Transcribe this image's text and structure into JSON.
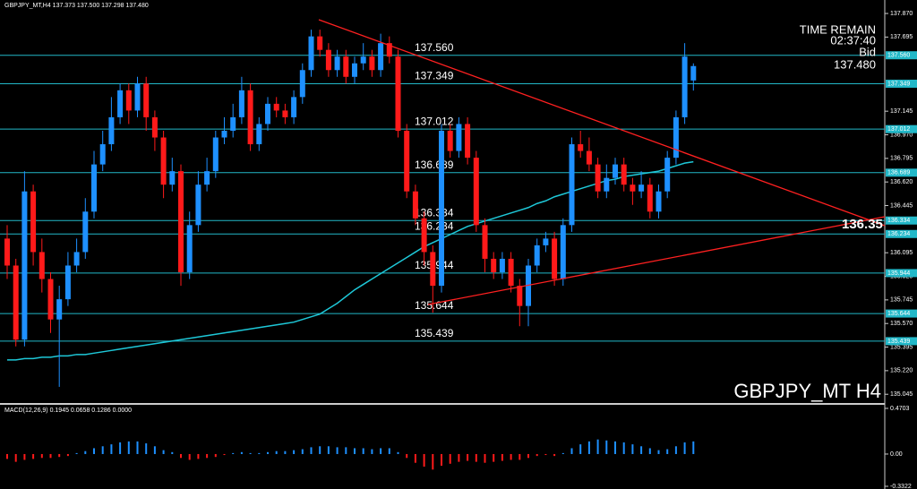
{
  "chart_data": {
    "type": "candlestick",
    "header": "GBPJPY_MT,H4  137.373 137.500 137.298 137.480",
    "watermark": "GBPJPY_MT H4",
    "time_remain_label": "TIME REMAIN",
    "time_remain": "02:37:40",
    "bid_label": "Bid",
    "bid": "137.480",
    "price_marker": "136.35",
    "up_color": "#1e90ff",
    "down_color": "#ff1a1a",
    "ylim": [
      134.98,
      137.97
    ],
    "yticks": [
      {
        "value": 137.87,
        "label": "137.870"
      },
      {
        "value": 137.695,
        "label": "137.695"
      },
      {
        "value": 137.145,
        "label": "137.145"
      },
      {
        "value": 136.97,
        "label": "136.970"
      },
      {
        "value": 136.795,
        "label": "136.795"
      },
      {
        "value": 136.62,
        "label": "136.620"
      },
      {
        "value": 136.445,
        "label": "136.445"
      },
      {
        "value": 136.095,
        "label": "136.095"
      },
      {
        "value": 135.92,
        "label": "135.920"
      },
      {
        "value": 135.745,
        "label": "135.745"
      },
      {
        "value": 135.57,
        "label": "135.570"
      },
      {
        "value": 135.395,
        "label": "135.395"
      },
      {
        "value": 135.22,
        "label": "135.220"
      },
      {
        "value": 135.045,
        "label": "135.045"
      }
    ],
    "levels": [
      {
        "value": 137.56,
        "label": "137.560"
      },
      {
        "value": 137.349,
        "label": "137.349"
      },
      {
        "value": 137.012,
        "label": "137.012"
      },
      {
        "value": 136.689,
        "label": "136.689"
      },
      {
        "value": 136.334,
        "label": "136.334"
      },
      {
        "value": 136.234,
        "label": "136.234"
      },
      {
        "value": 135.944,
        "label": "135.944"
      },
      {
        "value": 135.644,
        "label": "135.644"
      },
      {
        "value": 135.439,
        "label": "135.439"
      }
    ],
    "level_color": "#22b8c8",
    "open": [
      136.2,
      136.0,
      135.45,
      136.55,
      136.1,
      135.9,
      135.6,
      135.75,
      136.0,
      136.1,
      136.4,
      136.75,
      136.9,
      137.1,
      137.3,
      137.15,
      137.35,
      137.1,
      136.95,
      136.6,
      136.7,
      135.95,
      136.3,
      136.6,
      136.7,
      136.95,
      137.0,
      137.1,
      137.3,
      136.9,
      137.05,
      137.2,
      137.15,
      137.1,
      137.25,
      137.45,
      137.7,
      137.6,
      137.45,
      137.55,
      137.4,
      137.5,
      137.55,
      137.45,
      137.65,
      137.55,
      137.0,
      136.55,
      136.35,
      136.1,
      135.85,
      137.0,
      136.85,
      137.05,
      136.8,
      136.3,
      136.05,
      135.95,
      136.05,
      135.85,
      135.7,
      136.0,
      136.15,
      136.2,
      135.9,
      136.3,
      136.9,
      136.85,
      136.75,
      136.55,
      136.65,
      136.75,
      136.6,
      136.55,
      136.6,
      136.4,
      136.55,
      136.8,
      137.1,
      137.373
    ],
    "high": [
      136.3,
      136.05,
      136.7,
      136.6,
      136.2,
      135.95,
      135.85,
      136.1,
      136.2,
      136.5,
      136.85,
      137.0,
      137.25,
      137.35,
      137.35,
      137.4,
      137.4,
      137.15,
      137.0,
      136.8,
      136.75,
      136.4,
      136.7,
      136.8,
      137.0,
      137.1,
      137.2,
      137.4,
      137.35,
      137.1,
      137.25,
      137.25,
      137.2,
      137.3,
      137.5,
      137.75,
      137.75,
      137.65,
      137.6,
      137.6,
      137.55,
      137.65,
      137.6,
      137.72,
      137.7,
      137.6,
      137.05,
      136.6,
      136.4,
      136.15,
      137.05,
      137.05,
      137.1,
      137.1,
      136.85,
      136.35,
      136.1,
      136.1,
      136.1,
      135.9,
      136.05,
      136.2,
      136.25,
      136.25,
      136.35,
      136.95,
      137.0,
      136.95,
      136.8,
      136.75,
      136.8,
      136.8,
      136.65,
      136.7,
      136.65,
      136.6,
      136.85,
      137.15,
      137.65,
      137.5
    ],
    "low": [
      135.9,
      135.4,
      135.4,
      136.0,
      135.8,
      135.5,
      135.1,
      135.7,
      135.95,
      136.05,
      136.35,
      136.7,
      136.85,
      137.05,
      137.05,
      137.1,
      137.0,
      136.85,
      136.5,
      136.55,
      135.85,
      135.9,
      136.25,
      136.55,
      136.65,
      136.9,
      136.95,
      137.05,
      136.85,
      136.85,
      137.0,
      137.1,
      137.05,
      137.05,
      137.2,
      137.4,
      137.55,
      137.4,
      137.4,
      137.35,
      137.35,
      137.45,
      137.4,
      137.4,
      137.5,
      136.95,
      136.5,
      136.3,
      136.0,
      135.65,
      135.8,
      136.8,
      136.8,
      136.75,
      136.25,
      135.95,
      135.9,
      135.9,
      135.8,
      135.55,
      135.55,
      135.95,
      136.1,
      135.85,
      135.85,
      136.25,
      136.8,
      136.7,
      136.5,
      136.5,
      136.6,
      136.55,
      136.45,
      136.5,
      136.35,
      136.35,
      136.5,
      136.75,
      137.05,
      137.298
    ],
    "close": [
      136.0,
      135.45,
      136.55,
      136.1,
      135.9,
      135.6,
      135.75,
      136.0,
      136.1,
      136.4,
      136.75,
      136.9,
      137.1,
      137.3,
      137.15,
      137.35,
      137.1,
      136.95,
      136.6,
      136.7,
      135.95,
      136.3,
      136.6,
      136.7,
      136.95,
      137.0,
      137.1,
      137.3,
      136.9,
      137.05,
      137.2,
      137.15,
      137.1,
      137.25,
      137.45,
      137.7,
      137.6,
      137.45,
      137.55,
      137.4,
      137.5,
      137.55,
      137.45,
      137.65,
      137.55,
      137.0,
      136.55,
      136.35,
      136.1,
      135.85,
      137.0,
      136.85,
      137.05,
      136.8,
      136.3,
      136.05,
      135.95,
      136.05,
      135.85,
      135.7,
      136.0,
      136.15,
      136.2,
      135.9,
      136.3,
      136.9,
      136.85,
      136.75,
      136.55,
      136.65,
      136.75,
      136.6,
      136.55,
      136.6,
      136.4,
      136.55,
      136.8,
      137.1,
      137.55,
      137.48
    ],
    "ma": {
      "color": "#1ec8d8",
      "values": [
        135.3,
        135.3,
        135.31,
        135.31,
        135.32,
        135.32,
        135.33,
        135.33,
        135.34,
        135.34,
        135.35,
        135.36,
        135.37,
        135.38,
        135.39,
        135.4,
        135.41,
        135.42,
        135.43,
        135.44,
        135.45,
        135.46,
        135.47,
        135.48,
        135.49,
        135.5,
        135.51,
        135.52,
        135.53,
        135.54,
        135.55,
        135.56,
        135.57,
        135.58,
        135.6,
        135.62,
        135.64,
        135.68,
        135.72,
        135.77,
        135.82,
        135.86,
        135.9,
        135.94,
        135.98,
        136.02,
        136.06,
        136.1,
        136.14,
        136.17,
        136.2,
        136.23,
        136.26,
        136.29,
        136.31,
        136.33,
        136.35,
        136.37,
        136.39,
        136.41,
        136.43,
        136.46,
        136.48,
        136.51,
        136.53,
        136.55,
        136.57,
        136.59,
        136.61,
        136.63,
        136.64,
        136.66,
        136.67,
        136.68,
        136.69,
        136.7,
        136.72,
        136.74,
        136.76,
        136.77
      ]
    },
    "macd": {
      "label": "MACD(12,26,9) 0.1945 0.0658 0.1286 0.0000",
      "ylim": [
        -0.36,
        0.507
      ],
      "yticks": [
        {
          "value": 0.4703,
          "label": "0.4703"
        },
        {
          "value": 0,
          "label": "0.00"
        },
        {
          "value": -0.3322,
          "label": "-0.3322"
        }
      ],
      "values": [
        -0.05,
        -0.08,
        -0.06,
        -0.05,
        -0.04,
        -0.04,
        -0.03,
        -0.02,
        0.01,
        0.03,
        0.06,
        0.08,
        0.1,
        0.12,
        0.13,
        0.13,
        0.11,
        0.08,
        0.04,
        0.02,
        -0.04,
        -0.06,
        -0.05,
        -0.04,
        -0.03,
        -0.01,
        0.01,
        0.02,
        0.01,
        0.01,
        0.02,
        0.03,
        0.03,
        0.04,
        0.05,
        0.07,
        0.08,
        0.08,
        0.07,
        0.07,
        0.06,
        0.06,
        0.05,
        0.06,
        0.06,
        0.02,
        -0.04,
        -0.09,
        -0.13,
        -0.16,
        -0.12,
        -0.1,
        -0.08,
        -0.07,
        -0.08,
        -0.09,
        -0.08,
        -0.07,
        -0.06,
        -0.06,
        -0.04,
        -0.02,
        -0.01,
        -0.02,
        0.01,
        0.06,
        0.1,
        0.13,
        0.15,
        0.14,
        0.13,
        0.12,
        0.1,
        0.08,
        0.06,
        0.04,
        0.05,
        0.08,
        0.12,
        0.13
      ]
    }
  }
}
